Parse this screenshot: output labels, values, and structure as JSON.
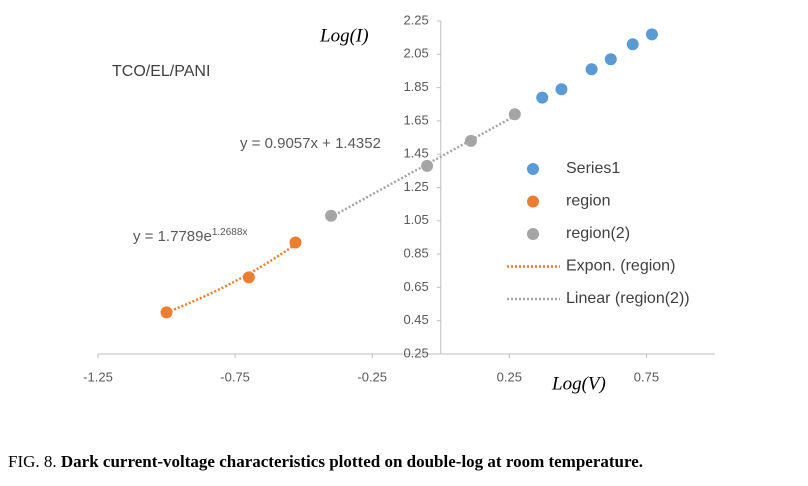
{
  "chart_data": {
    "type": "scatter",
    "annotation": "TCO/EL/PANI",
    "y_label": "Log(I)",
    "x_label": "Log(V)",
    "caption_prefix": "FIG. 8.",
    "caption": "Dark current-voltage characteristics plotted on double-log at room temperature.",
    "xlim": [
      -1.25,
      1.0
    ],
    "xticks": [
      -1.25,
      -0.75,
      -0.25,
      0.25,
      0.75
    ],
    "ylim": [
      0.25,
      2.25
    ],
    "yticks": [
      0.25,
      0.45,
      0.65,
      0.85,
      1.05,
      1.25,
      1.45,
      1.65,
      1.85,
      2.05,
      2.25
    ],
    "series": [
      {
        "name": "Series1",
        "color": "#5b9bd5",
        "x": [
          0.37,
          0.44,
          0.55,
          0.62,
          0.7,
          0.77
        ],
        "y": [
          1.79,
          1.84,
          1.96,
          2.02,
          2.11,
          2.17
        ]
      },
      {
        "name": "region",
        "color": "#ed7d31",
        "x": [
          -1.0,
          -0.7,
          -0.53
        ],
        "y": [
          0.5,
          0.71,
          0.92
        ]
      },
      {
        "name": "region(2)",
        "color": "#a5a5a5",
        "x": [
          -0.4,
          -0.05,
          0.11,
          0.27
        ],
        "y": [
          1.08,
          1.38,
          1.53,
          1.69
        ]
      }
    ],
    "trendlines": [
      {
        "name": "Expon. (region)",
        "kind": "exponential",
        "color": "#ed7d31",
        "a": 1.7789,
        "b": 1.2688,
        "equation": "y = 1.7789e",
        "exponent": "1.2688x"
      },
      {
        "name": "Linear (region(2))",
        "kind": "linear",
        "color": "#a5a5a5",
        "a": 0.9057,
        "b": 1.4352,
        "equation": "y = 0.9057x + 1.4352"
      }
    ]
  }
}
